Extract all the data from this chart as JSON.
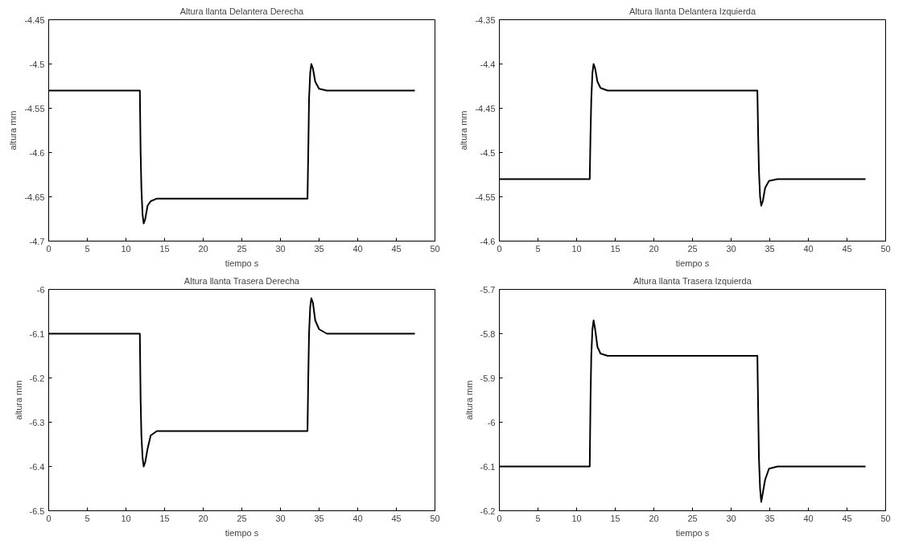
{
  "chart_data": [
    {
      "type": "line",
      "title": "Altura llanta Delantera Derecha",
      "xlabel": "tiempo s",
      "ylabel": "altura mm",
      "xlim": [
        0,
        50
      ],
      "xticks": [
        0,
        5,
        10,
        15,
        20,
        25,
        30,
        35,
        40,
        45,
        50
      ],
      "ylim": [
        -4.7,
        -4.45
      ],
      "yticks": [
        -4.7,
        -4.65,
        -4.6,
        -4.55,
        -4.5,
        -4.45
      ],
      "grid": false,
      "series": [
        {
          "color": "#000000",
          "x": [
            0,
            11.8,
            11.9,
            12.0,
            12.15,
            12.3,
            12.5,
            12.8,
            13.2,
            14,
            33.5,
            33.6,
            33.7,
            33.85,
            34.0,
            34.2,
            34.5,
            35,
            36,
            47.4
          ],
          "values": [
            -4.53,
            -4.53,
            -4.6,
            -4.64,
            -4.67,
            -4.68,
            -4.675,
            -4.66,
            -4.655,
            -4.652,
            -4.652,
            -4.6,
            -4.54,
            -4.51,
            -4.5,
            -4.505,
            -4.52,
            -4.528,
            -4.53,
            -4.53
          ]
        }
      ]
    },
    {
      "type": "line",
      "title": "Altura llanta Delantera Izquierda",
      "xlabel": "tiempo s",
      "ylabel": "altura mm",
      "xlim": [
        0,
        50
      ],
      "xticks": [
        0,
        5,
        10,
        15,
        20,
        25,
        30,
        35,
        40,
        45,
        50
      ],
      "ylim": [
        -4.6,
        -4.35
      ],
      "yticks": [
        -4.6,
        -4.55,
        -4.5,
        -4.45,
        -4.4,
        -4.35
      ],
      "grid": false,
      "series": [
        {
          "color": "#000000",
          "x": [
            0,
            11.7,
            11.8,
            11.9,
            12.05,
            12.2,
            12.4,
            12.7,
            13.1,
            14,
            33.4,
            33.5,
            33.6,
            33.75,
            33.9,
            34.1,
            34.4,
            34.9,
            36,
            47.4
          ],
          "values": [
            -4.53,
            -4.53,
            -4.48,
            -4.44,
            -4.41,
            -4.4,
            -4.405,
            -4.42,
            -4.427,
            -4.43,
            -4.43,
            -4.48,
            -4.52,
            -4.55,
            -4.56,
            -4.555,
            -4.54,
            -4.532,
            -4.53,
            -4.53
          ]
        }
      ]
    },
    {
      "type": "line",
      "title": "Altura llanta Trasera Derecha",
      "xlabel": "tiempo s",
      "ylabel": "altura mm",
      "xlim": [
        0,
        50
      ],
      "xticks": [
        0,
        5,
        10,
        15,
        20,
        25,
        30,
        35,
        40,
        45,
        50
      ],
      "ylim": [
        -6.5,
        -6
      ],
      "yticks": [
        -6.5,
        -6.4,
        -6.3,
        -6.2,
        -6.1,
        -6
      ],
      "grid": false,
      "series": [
        {
          "color": "#000000",
          "x": [
            0,
            11.8,
            11.9,
            12.0,
            12.15,
            12.3,
            12.5,
            12.8,
            13.2,
            14,
            33.5,
            33.6,
            33.7,
            33.85,
            34.0,
            34.2,
            34.5,
            35,
            36,
            47.4
          ],
          "values": [
            -6.1,
            -6.1,
            -6.25,
            -6.33,
            -6.38,
            -6.4,
            -6.39,
            -6.36,
            -6.33,
            -6.32,
            -6.32,
            -6.2,
            -6.1,
            -6.04,
            -6.02,
            -6.03,
            -6.07,
            -6.09,
            -6.1,
            -6.1
          ]
        }
      ]
    },
    {
      "type": "line",
      "title": "Altura llanta Trasera Izquierda",
      "xlabel": "tiempo s",
      "ylabel": "altura mm",
      "xlim": [
        0,
        50
      ],
      "xticks": [
        0,
        5,
        10,
        15,
        20,
        25,
        30,
        35,
        40,
        45,
        50
      ],
      "ylim": [
        -6.2,
        -5.7
      ],
      "yticks": [
        -6.2,
        -6.1,
        -6,
        -5.9,
        -5.8,
        -5.7
      ],
      "grid": false,
      "series": [
        {
          "color": "#000000",
          "x": [
            0,
            11.7,
            11.8,
            11.9,
            12.05,
            12.2,
            12.4,
            12.7,
            13.1,
            14,
            33.4,
            33.5,
            33.6,
            33.75,
            33.9,
            34.1,
            34.4,
            34.9,
            36,
            47.4
          ],
          "values": [
            -6.1,
            -6.1,
            -5.95,
            -5.85,
            -5.79,
            -5.77,
            -5.79,
            -5.83,
            -5.845,
            -5.85,
            -5.85,
            -5.97,
            -6.08,
            -6.15,
            -6.18,
            -6.16,
            -6.13,
            -6.105,
            -6.1,
            -6.1
          ]
        }
      ]
    }
  ]
}
